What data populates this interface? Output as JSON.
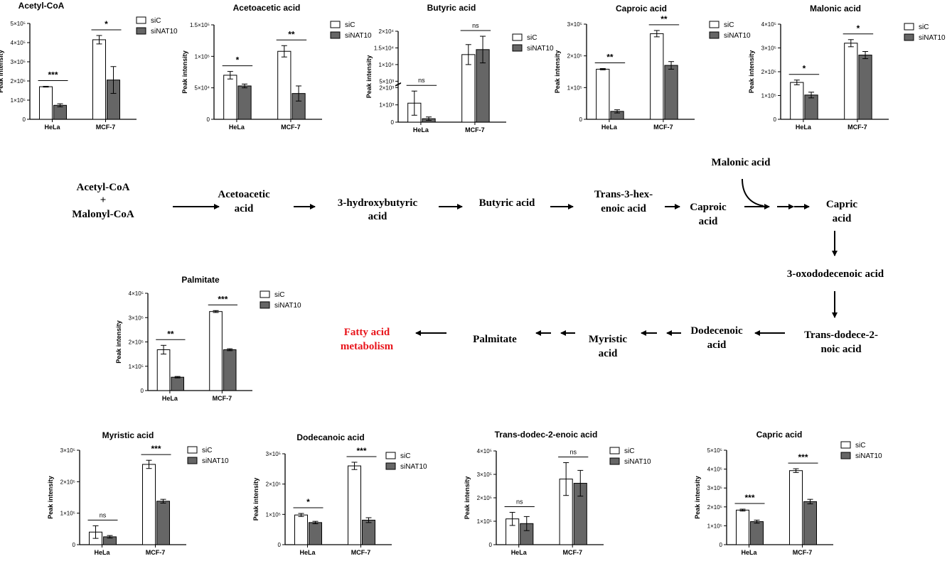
{
  "legend": {
    "siC": "siC",
    "siNAT10": "siNAT10"
  },
  "colors": {
    "siC": "#ffffff",
    "siNAT10": "#666666",
    "highlight": "#e8141b"
  },
  "chart_data": [
    {
      "id": "acetylcoa",
      "type": "bar",
      "title": "Acetyl-CoA",
      "ylabel": "Peak intensity",
      "categories": [
        "HeLa",
        "MCF-7"
      ],
      "ylim": [
        0,
        500000
      ],
      "yticks": [
        0,
        100000,
        200000,
        300000,
        400000,
        500000
      ],
      "yticklabels": [
        "0",
        "1×10⁵",
        "2×10⁵",
        "3×10⁵",
        "4×10⁵",
        "5×10⁵"
      ],
      "series": [
        {
          "name": "siC",
          "values": [
            170000,
            415000
          ],
          "errors": [
            2000,
            22000
          ]
        },
        {
          "name": "siNAT10",
          "values": [
            73000,
            205000
          ],
          "errors": [
            8000,
            70000
          ]
        }
      ],
      "significance": [
        "***",
        "*"
      ]
    },
    {
      "id": "acetoacetic",
      "type": "bar",
      "title": "Acetoacetic acid",
      "ylabel": "Peak intensity",
      "categories": [
        "HeLa",
        "MCF-7"
      ],
      "ylim": [
        0,
        150000
      ],
      "yticks": [
        0,
        50000,
        100000,
        150000
      ],
      "yticklabels": [
        "0",
        "5×10⁴",
        "1×10⁵",
        "1.5×10⁵"
      ],
      "series": [
        {
          "name": "siC",
          "values": [
            70000,
            108000
          ],
          "errors": [
            6000,
            9000
          ]
        },
        {
          "name": "siNAT10",
          "values": [
            53000,
            41000
          ],
          "errors": [
            3000,
            12000
          ]
        }
      ],
      "significance": [
        "*",
        "**"
      ]
    },
    {
      "id": "butyric",
      "type": "bar",
      "title": "Butyric acid",
      "ylabel": "Peak intensity",
      "categories": [
        "HeLa",
        "MCF-7"
      ],
      "axis_break": true,
      "ylim": [
        0,
        20000
      ],
      "yticks": [
        0,
        1000,
        2000,
        5000,
        10000,
        15000,
        20000
      ],
      "yticklabels": [
        "0",
        "1×10³",
        "2×10³",
        "5×10³",
        "1×10⁴",
        "1.5×10⁴",
        "2×10⁴"
      ],
      "series": [
        {
          "name": "siC",
          "values": [
            1100,
            13000
          ],
          "errors": [
            700,
            3000
          ]
        },
        {
          "name": "siNAT10",
          "values": [
            200,
            14500
          ],
          "errors": [
            100,
            4000
          ]
        }
      ],
      "significance": [
        "ns",
        "ns"
      ]
    },
    {
      "id": "caproic",
      "type": "bar",
      "title": "Caproic acid",
      "ylabel": "Peak intensity",
      "categories": [
        "HeLa",
        "MCF-7"
      ],
      "ylim": [
        0,
        300000
      ],
      "yticks": [
        0,
        100000,
        200000,
        300000
      ],
      "yticklabels": [
        "0",
        "1×10⁵",
        "2×10⁵",
        "3×10⁵"
      ],
      "series": [
        {
          "name": "siC",
          "values": [
            158000,
            270000
          ],
          "errors": [
            2000,
            10000
          ]
        },
        {
          "name": "siNAT10",
          "values": [
            25000,
            170000
          ],
          "errors": [
            5000,
            12000
          ]
        }
      ],
      "significance": [
        "**",
        "**"
      ]
    },
    {
      "id": "malonic",
      "type": "bar",
      "title": "Malonic acid",
      "ylabel": "Peak intensity",
      "categories": [
        "HeLa",
        "MCF-7"
      ],
      "ylim": [
        0,
        400000
      ],
      "yticks": [
        0,
        100000,
        200000,
        300000,
        400000
      ],
      "yticklabels": [
        "0",
        "1×10⁵",
        "2×10⁵",
        "3×10⁵",
        "4×10⁵"
      ],
      "series": [
        {
          "name": "siC",
          "values": [
            155000,
            320000
          ],
          "errors": [
            10000,
            15000
          ]
        },
        {
          "name": "siNAT10",
          "values": [
            102000,
            270000
          ],
          "errors": [
            12000,
            15000
          ]
        }
      ],
      "significance": [
        "*",
        "*"
      ]
    },
    {
      "id": "palmitate",
      "type": "bar",
      "title": "Palmitate",
      "ylabel": "Peak intensity",
      "categories": [
        "HeLa",
        "MCF-7"
      ],
      "ylim": [
        0,
        400000
      ],
      "yticks": [
        0,
        100000,
        200000,
        300000,
        400000
      ],
      "yticklabels": [
        "0",
        "1×10⁵",
        "2×10⁵",
        "3×10⁵",
        "4×10⁵"
      ],
      "series": [
        {
          "name": "siC",
          "values": [
            168000,
            325000
          ],
          "errors": [
            18000,
            4000
          ]
        },
        {
          "name": "siNAT10",
          "values": [
            55000,
            168000
          ],
          "errors": [
            3000,
            4000
          ]
        }
      ],
      "significance": [
        "**",
        "***"
      ]
    },
    {
      "id": "myristic",
      "type": "bar",
      "title": "Myristic acid",
      "ylabel": "Peak intensity",
      "categories": [
        "HeLa",
        "MCF-7"
      ],
      "ylim": [
        0,
        300000
      ],
      "yticks": [
        0,
        100000,
        200000,
        300000
      ],
      "yticklabels": [
        "0",
        "1×10⁵",
        "2×10⁵",
        "3×10⁵"
      ],
      "series": [
        {
          "name": "siC",
          "values": [
            40000,
            255000
          ],
          "errors": [
            20000,
            13000
          ]
        },
        {
          "name": "siNAT10",
          "values": [
            25000,
            138000
          ],
          "errors": [
            4000,
            6000
          ]
        }
      ],
      "significance": [
        "ns",
        "***"
      ]
    },
    {
      "id": "dodecanoic",
      "type": "bar",
      "title": "Dodecanoic acid",
      "ylabel": "Peak intensity",
      "categories": [
        "HeLa",
        "MCF-7"
      ],
      "ylim": [
        0,
        300000
      ],
      "yticks": [
        0,
        100000,
        200000,
        300000
      ],
      "yticklabels": [
        "0",
        "1×10⁵",
        "2×10⁵",
        "3×10⁵"
      ],
      "series": [
        {
          "name": "siC",
          "values": [
            98000,
            260000
          ],
          "errors": [
            5000,
            12000
          ]
        },
        {
          "name": "siNAT10",
          "values": [
            73000,
            81000
          ],
          "errors": [
            4000,
            8000
          ]
        }
      ],
      "significance": [
        "*",
        "***"
      ]
    },
    {
      "id": "transdodec",
      "type": "bar",
      "title": "Trans-dodec-2-enoic acid",
      "ylabel": "Peak intensity",
      "categories": [
        "HeLa",
        "MCF-7"
      ],
      "ylim": [
        0,
        400000
      ],
      "yticks": [
        0,
        100000,
        200000,
        300000,
        400000
      ],
      "yticklabels": [
        "0",
        "1×10⁵",
        "2×10⁵",
        "3×10⁵",
        "4×10⁵"
      ],
      "series": [
        {
          "name": "siC",
          "values": [
            110000,
            280000
          ],
          "errors": [
            28000,
            70000
          ]
        },
        {
          "name": "siNAT10",
          "values": [
            90000,
            262000
          ],
          "errors": [
            30000,
            55000
          ]
        }
      ],
      "significance": [
        "ns",
        "ns"
      ]
    },
    {
      "id": "capric",
      "type": "bar",
      "title": "Capric acid",
      "ylabel": "Peak intensity",
      "categories": [
        "HeLa",
        "MCF-7"
      ],
      "ylim": [
        0,
        500000
      ],
      "yticks": [
        0,
        100000,
        200000,
        300000,
        400000,
        500000
      ],
      "yticklabels": [
        "0",
        "1×10⁵",
        "2×10⁵",
        "3×10⁵",
        "4×10⁵",
        "5×10⁵"
      ],
      "series": [
        {
          "name": "siC",
          "values": [
            183000,
            392000
          ],
          "errors": [
            5000,
            10000
          ]
        },
        {
          "name": "siNAT10",
          "values": [
            122000,
            228000
          ],
          "errors": [
            8000,
            12000
          ]
        }
      ],
      "significance": [
        "***",
        "***"
      ]
    }
  ],
  "pathway": {
    "start_line1": "Acetyl-CoA",
    "start_plus": "+",
    "start_line2": "Malonyl-CoA",
    "acetoacetic": [
      "Acetoacetic",
      "acid"
    ],
    "hydroxybutyric": [
      "3-hydroxybutyric",
      "acid"
    ],
    "butyric": "Butyric acid",
    "trans3hex": [
      "Trans-3-hex-",
      "enoic acid"
    ],
    "caproic": [
      "Caproic",
      "acid"
    ],
    "malonic": "Malonic acid",
    "capric": [
      "Capric",
      "acid"
    ],
    "oxododecenoic": "3-oxododecenoic acid",
    "transdodece": [
      "Trans-dodece-2-",
      "noic acid"
    ],
    "dodecenoic": [
      "Dodecenoic",
      "acid"
    ],
    "myristic": [
      "Myristic",
      "acid"
    ],
    "palmitate": "Palmitate",
    "fattyacid": [
      "Fatty acid",
      "metabolism"
    ]
  }
}
